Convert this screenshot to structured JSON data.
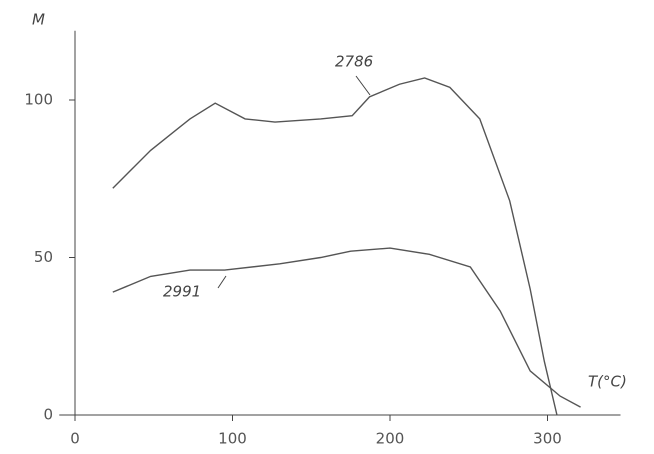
{
  "chart_data": {
    "type": "line",
    "x_label": "T(°C)",
    "y_label": "M",
    "xlim": [
      -10,
      340
    ],
    "ylim": [
      0,
      122
    ],
    "xticks": [
      0,
      100,
      200,
      300
    ],
    "yticks": [
      0,
      50,
      100
    ],
    "series": [
      {
        "name": "2786",
        "color": "#555555",
        "x": [
          24,
          48,
          73,
          89,
          108,
          127,
          156,
          176,
          187,
          206,
          222,
          238,
          257,
          276,
          289,
          298,
          306
        ],
        "values": [
          72,
          84,
          94,
          99,
          94,
          93,
          94,
          95,
          101,
          105,
          107,
          104,
          94,
          68,
          40,
          17,
          0
        ]
      },
      {
        "name": "2991",
        "color": "#555555",
        "x": [
          24,
          48,
          73,
          95,
          130,
          156,
          175,
          200,
          225,
          251,
          270,
          289,
          308,
          321
        ],
        "values": [
          39,
          44,
          46,
          46,
          48,
          50,
          52,
          53,
          51,
          47,
          33,
          14,
          6,
          2.5
        ]
      }
    ]
  }
}
